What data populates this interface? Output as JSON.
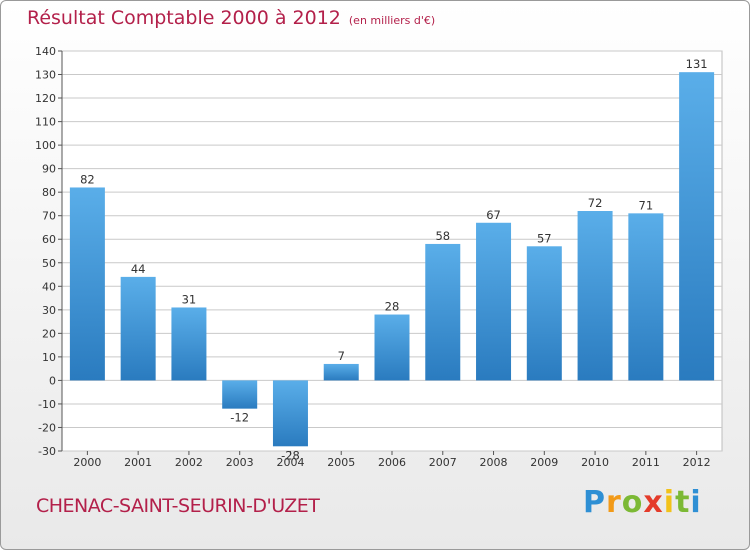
{
  "chart_data": {
    "type": "bar",
    "title": "Résultat Comptable 2000 à 2012",
    "unit_label": "(en milliers d'€)",
    "categories": [
      "2000",
      "2001",
      "2002",
      "2003",
      "2004",
      "2005",
      "2006",
      "2007",
      "2008",
      "2009",
      "2010",
      "2011",
      "2012"
    ],
    "values": [
      82,
      44,
      31,
      -12,
      -28,
      7,
      28,
      58,
      67,
      57,
      72,
      71,
      131
    ],
    "ylim": [
      -30,
      140
    ],
    "ytick_step": 10,
    "xlabel": "",
    "ylabel": "",
    "grid": true,
    "bar_color_light": "#5aaee9",
    "bar_color_dark": "#2a7bbf",
    "grid_color": "#c9c9c9"
  },
  "footer": {
    "commune": "CHENAC-SAINT-SEURIN-D'UZET",
    "logo_letters": [
      "P",
      "r",
      "o",
      "x",
      "i",
      "t",
      "i"
    ],
    "logo_colors": [
      "#2e8fd4",
      "#f29a18",
      "#7cb935",
      "#e43b2a",
      "#f2c21a",
      "#7cb935",
      "#2e8fd4"
    ]
  }
}
